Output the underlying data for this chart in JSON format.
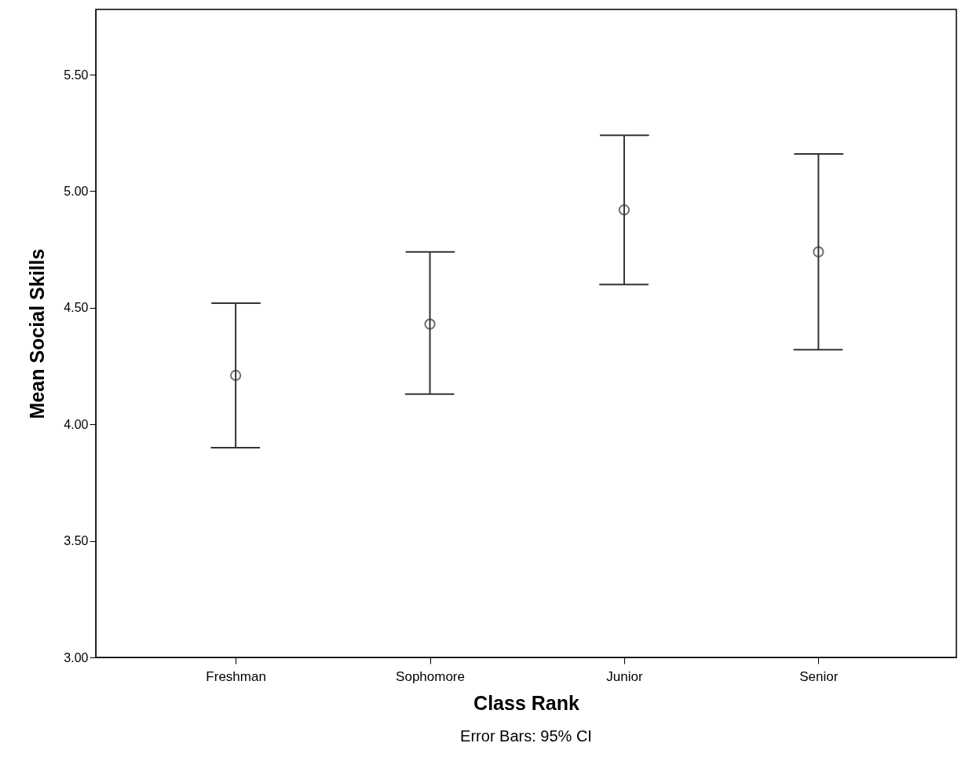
{
  "chart_data": {
    "type": "scatter",
    "xlabel": "Class Rank",
    "ylabel": "Mean Social Skills",
    "categories": [
      "Freshman",
      "Sophomore",
      "Junior",
      "Senior"
    ],
    "color": "#333333",
    "values": [
      4.21,
      4.43,
      4.92,
      4.74
    ],
    "errors": [
      [
        3.9,
        4.52
      ],
      [
        4.13,
        4.74
      ],
      [
        4.6,
        5.24
      ],
      [
        4.32,
        5.16
      ]
    ],
    "ylim": [
      3.0,
      5.78
    ],
    "yticks": [
      {
        "value": 3.0,
        "label": "3.00"
      },
      {
        "value": 3.5,
        "label": "3.50"
      },
      {
        "value": 4.0,
        "label": "4.00"
      },
      {
        "value": 4.5,
        "label": "4.50"
      },
      {
        "value": 5.0,
        "label": "5.00"
      },
      {
        "value": 5.5,
        "label": "5.50"
      }
    ],
    "marker": "circle",
    "grid": false,
    "annotations": [
      "Error Bars: 95% CI"
    ]
  }
}
